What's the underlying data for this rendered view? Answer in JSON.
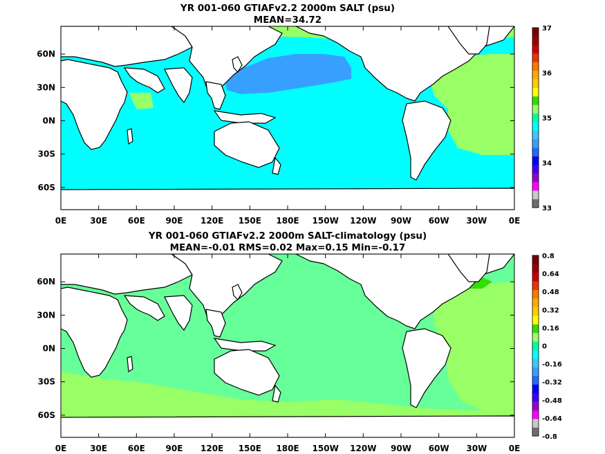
{
  "panels": [
    {
      "title": "YR 001-060 GTIAFv2.2 2000m SALT (psu)",
      "subtitle": "MEAN=34.72",
      "colorbar": {
        "labels": [
          "33",
          "34",
          "35",
          "36",
          "37"
        ],
        "colors": [
          "#6e6e6e",
          "#c8c8c8",
          "#ff00ff",
          "#9900cc",
          "#3b00ff",
          "#0000ff",
          "#1e6cff",
          "#37a0ff",
          "#3ec6ff",
          "#00ffff",
          "#00ff99",
          "#99ff66",
          "#33dd00",
          "#ffff00",
          "#ffcc00",
          "#ffaa00",
          "#ff7700",
          "#ee3300",
          "#cc0000",
          "#990000",
          "#770000"
        ]
      },
      "ocean_color": "#00ffff",
      "field_patches": [
        {
          "color": "#37a0ff",
          "region": "north-pacific"
        },
        {
          "color": "#99ff66",
          "region": "atlantic"
        },
        {
          "color": "#99ff66",
          "region": "arctic"
        },
        {
          "color": "#99ff66",
          "region": "arabian-sea"
        }
      ]
    },
    {
      "title": "YR 001-060 GTIAFv2.2 2000m SALT-climatology (psu)",
      "subtitle": "MEAN=-0.01   RMS=0.02   Max=0.15   Min=-0.17",
      "colorbar": {
        "labels": [
          "-0.8",
          "-0.64",
          "-0.48",
          "-0.32",
          "-0.16",
          "0",
          "0.16",
          "0.32",
          "0.48",
          "0.64",
          "0.8"
        ],
        "colors": [
          "#6e6e6e",
          "#c8c8c8",
          "#ff00ff",
          "#9900cc",
          "#3b00ff",
          "#0000ff",
          "#1e6cff",
          "#37a0ff",
          "#3ec6ff",
          "#00ffff",
          "#00ff99",
          "#99ff66",
          "#33dd00",
          "#ffff00",
          "#ffcc00",
          "#ffaa00",
          "#ff7700",
          "#ee3300",
          "#cc0000",
          "#990000",
          "#770000"
        ]
      },
      "ocean_color": "#66ff99",
      "field_patches": [
        {
          "color": "#99ff66",
          "region": "atlantic"
        },
        {
          "color": "#99ff66",
          "region": "southern-band"
        },
        {
          "color": "#33dd00",
          "region": "labrador"
        }
      ]
    }
  ],
  "xticks": [
    "0E",
    "30E",
    "60E",
    "90E",
    "120E",
    "150E",
    "180E",
    "150W",
    "120W",
    "90W",
    "60W",
    "30W",
    "0E"
  ],
  "yticks": [
    "60N",
    "30N",
    "0N",
    "30S",
    "60S"
  ]
}
